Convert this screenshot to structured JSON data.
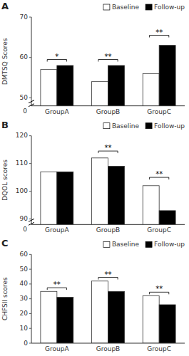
{
  "chart_data": [
    {
      "type": "bar",
      "title": "A",
      "y_label": "DMTSQ Scores",
      "categories": [
        "GroupA",
        "GroupB",
        "GroupC"
      ],
      "series": [
        {
          "name": "Baseline",
          "color": "white",
          "values": [
            57.0,
            54.0,
            56.0
          ]
        },
        {
          "name": "Follow-up",
          "color": "black",
          "values": [
            58.0,
            58.0,
            63.0
          ]
        }
      ],
      "ylim": [
        48,
        70
      ],
      "yticks": [
        50,
        60,
        70
      ],
      "grid": false,
      "legend": "upper right",
      "annotations": [
        {
          "text": "0"
        },
        {
          "text": "*",
          "x": "GroupA",
          "y": 59.5
        },
        {
          "text": "**",
          "x": "GroupB",
          "y": 59.5
        },
        {
          "text": "**",
          "x": "GroupC",
          "y": 65.5
        }
      ]
    },
    {
      "type": "bar",
      "title": "B",
      "y_label": "DQOL scores",
      "categories": [
        "GroupA",
        "GroupB",
        "GroupC"
      ],
      "series": [
        {
          "name": "Baseline",
          "color": "white",
          "values": [
            107.0,
            112.0,
            102.0
          ]
        },
        {
          "name": "Follow-up",
          "color": "black",
          "values": [
            107.0,
            109.0,
            93.0
          ]
        }
      ],
      "ylim": [
        88,
        120
      ],
      "yticks": [
        90,
        100,
        110,
        120
      ],
      "grid": false,
      "legend": "upper right",
      "annotations": [
        {
          "text": "0"
        },
        {
          "text": "**",
          "x": "GroupB",
          "y": 114.5
        },
        {
          "text": "**",
          "x": "GroupC",
          "y": 105.0
        }
      ]
    },
    {
      "type": "bar",
      "title": "C",
      "y_label": "CHFSII scores",
      "categories": [
        "GroupA",
        "GroupB",
        "GroupC"
      ],
      "series": [
        {
          "name": "Baseline",
          "color": "white",
          "values": [
            35.0,
            42.0,
            32.0
          ]
        },
        {
          "name": "Follow-up",
          "color": "black",
          "values": [
            31.0,
            35.0,
            26.0
          ]
        }
      ],
      "ylim": [
        0,
        60
      ],
      "yticks": [
        0,
        10,
        20,
        30,
        40,
        50,
        60
      ],
      "grid": false,
      "legend": "upper right",
      "annotations": [
        {
          "text": "**",
          "x": "GroupA",
          "y": 37.5
        },
        {
          "text": "**",
          "x": "GroupB",
          "y": 44.5
        },
        {
          "text": "**",
          "x": "GroupC",
          "y": 34.5
        }
      ]
    }
  ]
}
